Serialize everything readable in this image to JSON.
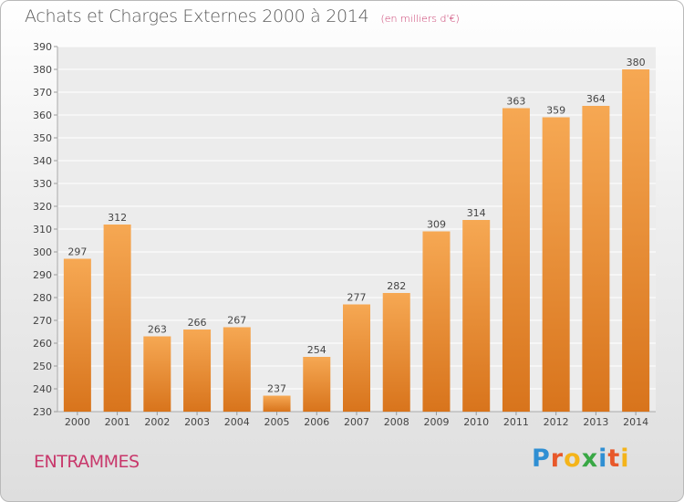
{
  "title": "Achats et Charges Externes 2000 à 2014",
  "unit_note": "(en milliers d'€)",
  "commune": "ENTRAMMES",
  "logo": {
    "text": "Proxiti",
    "letter_colors": [
      "#2f8fd3",
      "#e8582a",
      "#f4b41a",
      "#39a845",
      "#2f8fd3",
      "#e8582a",
      "#f4b41a"
    ]
  },
  "colors": {
    "bar_top": "#f6a853",
    "bar_bottom": "#d8741c",
    "grid": "#ffffff",
    "axis_text": "#444444"
  },
  "chart_data": {
    "type": "bar",
    "categories": [
      "2000",
      "2001",
      "2002",
      "2003",
      "2004",
      "2005",
      "2006",
      "2007",
      "2008",
      "2009",
      "2010",
      "2011",
      "2012",
      "2013",
      "2014"
    ],
    "values": [
      297,
      312,
      263,
      266,
      267,
      237,
      254,
      277,
      282,
      309,
      314,
      363,
      359,
      364,
      380
    ],
    "data_labels": [
      "297",
      "312",
      "263",
      "266",
      "267",
      "237",
      "254",
      "277",
      "282",
      "309",
      "314",
      "363",
      "359",
      "364",
      "380"
    ],
    "y_ticks": [
      230,
      240,
      250,
      260,
      270,
      280,
      290,
      300,
      310,
      320,
      330,
      340,
      350,
      360,
      370,
      380,
      390
    ],
    "y_tick_labels": [
      "230",
      "240",
      "250",
      "260",
      "270",
      "280",
      "290",
      "300",
      "310",
      "320",
      "330",
      "340",
      "350",
      "360",
      "370",
      "380",
      "390"
    ],
    "ylim": [
      230,
      390
    ],
    "grid": true,
    "legend": "none",
    "title": "Achats et Charges Externes 2000 à 2014"
  }
}
